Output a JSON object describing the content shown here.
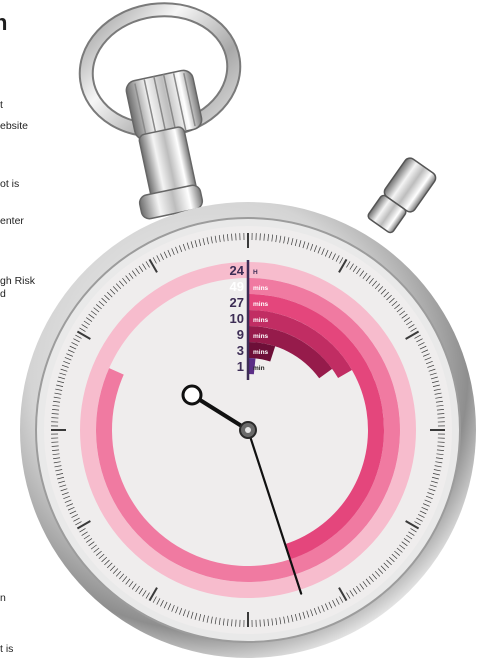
{
  "left_column": {
    "title": "n",
    "fragments": [
      "t",
      "ebsite",
      "ot is",
      "enter",
      "gh Risk",
      "d",
      "n",
      "t is"
    ]
  },
  "colors": {
    "face": "#efeded",
    "band_light": "#f7bccd",
    "band_mid": "#f07aa1",
    "band_strong": "#e4467c",
    "band_deep": "#c12d63",
    "band_darker": "#961b4b",
    "band_darkest": "#6d0f38",
    "band_purple": "#5b2d86",
    "hand": "#111111"
  },
  "chart_data": {
    "type": "radial-bar",
    "title": "",
    "xlabel": "",
    "ylabel": "",
    "scale_max_minutes": 60,
    "categories": [
      "24",
      "49",
      "27",
      "10",
      "9",
      "3",
      "1"
    ],
    "units": [
      "H",
      "mins",
      "mins",
      "mins",
      "mins",
      "mins",
      "min"
    ],
    "values_minutes": [
      60,
      49,
      27,
      10,
      9,
      3,
      1
    ],
    "hand_minutes": 27
  }
}
